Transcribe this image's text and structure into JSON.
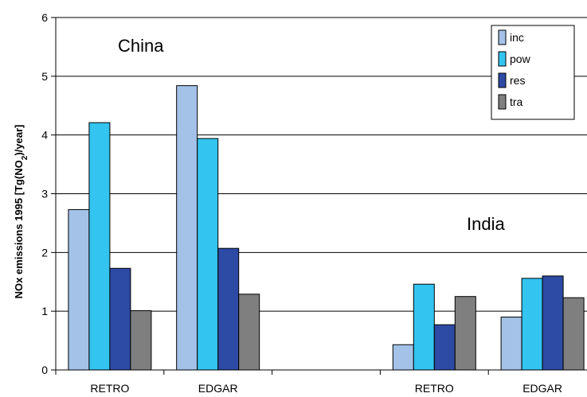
{
  "chart_data": {
    "type": "bar",
    "ylabel": "NOx emissions 1995 [Tg(NO",
    "ylabel_sub": "2",
    "ylabel_end": ")/year]",
    "ylim": [
      0,
      6
    ],
    "yticks": [
      0,
      1,
      2,
      3,
      4,
      5,
      6
    ],
    "grid": true,
    "legend_position": "top-right",
    "categories": [
      "RETRO",
      "EDGAR",
      "",
      "RETRO",
      "EDGAR"
    ],
    "series": [
      {
        "name": "inc",
        "color": "#a4c2e8",
        "values": [
          2.73,
          4.84,
          null,
          0.43,
          0.9
        ]
      },
      {
        "name": "pow",
        "color": "#33c4f0",
        "values": [
          4.21,
          3.94,
          null,
          1.46,
          1.56
        ]
      },
      {
        "name": "res",
        "color": "#2d4aa4",
        "values": [
          1.73,
          2.07,
          null,
          0.77,
          1.6
        ]
      },
      {
        "name": "tra",
        "color": "#7f7f7f",
        "values": [
          1.01,
          1.29,
          null,
          1.25,
          1.23
        ]
      }
    ],
    "annotations": [
      "China",
      "India"
    ]
  }
}
